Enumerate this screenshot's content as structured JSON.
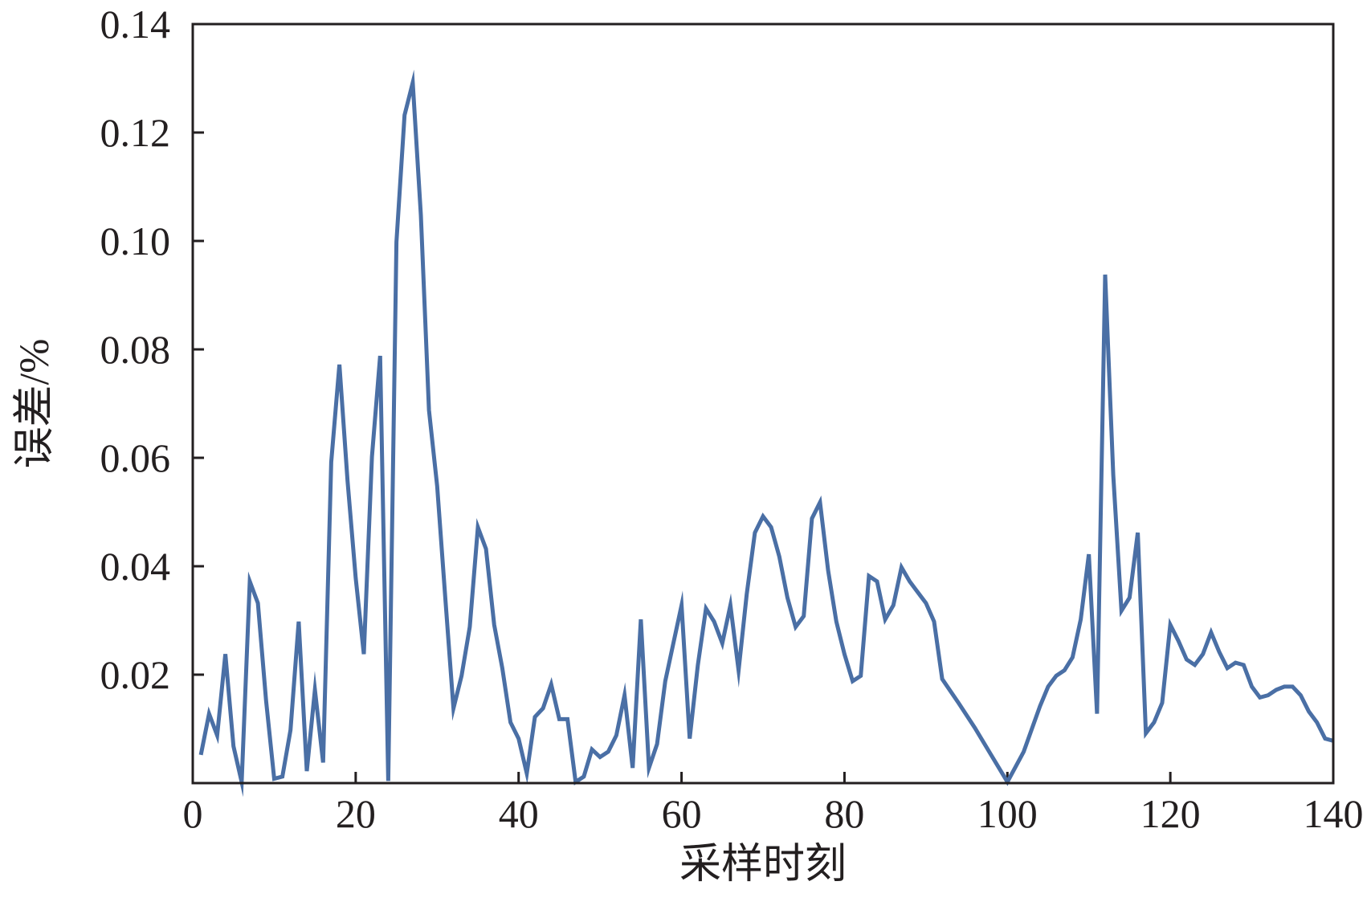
{
  "colors": {
    "line": "#4a6fa5",
    "axis": "#231f20",
    "background": "#ffffff"
  },
  "chart_data": {
    "type": "line",
    "title": "",
    "xlabel": "采样时刻",
    "ylabel": "误差/%",
    "xlim": [
      0,
      140
    ],
    "ylim": [
      0,
      0.14
    ],
    "grid": false,
    "legend": "none",
    "x_ticks": [
      0,
      20,
      40,
      60,
      80,
      100,
      120,
      140
    ],
    "x_tick_labels": [
      "0",
      "20",
      "40",
      "60",
      "80",
      "100",
      "120",
      "140"
    ],
    "y_ticks": [
      0.02,
      0.04,
      0.06,
      0.08,
      0.1,
      0.12,
      0.14
    ],
    "y_tick_labels": [
      "0.02",
      "0.04",
      "0.06",
      "0.08",
      "0.10",
      "0.12",
      "0.14"
    ],
    "series": [
      {
        "values": [
          [
            1,
            0.0052
          ],
          [
            2,
            0.0128
          ],
          [
            3,
            0.0088
          ],
          [
            4,
            0.0238
          ],
          [
            5,
            0.0068
          ],
          [
            6,
            0.0002
          ],
          [
            7,
            0.0372
          ],
          [
            8,
            0.0332
          ],
          [
            9,
            0.0152
          ],
          [
            10,
            0.0008
          ],
          [
            11,
            0.0012
          ],
          [
            12,
            0.0098
          ],
          [
            13,
            0.0298
          ],
          [
            14,
            0.0022
          ],
          [
            15,
            0.0172
          ],
          [
            16,
            0.0038
          ],
          [
            17,
            0.0592
          ],
          [
            18,
            0.0772
          ],
          [
            19,
            0.0558
          ],
          [
            20,
            0.0378
          ],
          [
            21,
            0.0238
          ],
          [
            22,
            0.0602
          ],
          [
            23,
            0.0788
          ],
          [
            24,
            0.0004
          ],
          [
            25,
            0.0998
          ],
          [
            26,
            0.1232
          ],
          [
            27,
            0.1292
          ],
          [
            28,
            0.1048
          ],
          [
            29,
            0.0688
          ],
          [
            30,
            0.0548
          ],
          [
            31,
            0.0342
          ],
          [
            32,
            0.0138
          ],
          [
            33,
            0.0198
          ],
          [
            34,
            0.0288
          ],
          [
            35,
            0.0472
          ],
          [
            36,
            0.0432
          ],
          [
            37,
            0.0292
          ],
          [
            38,
            0.0212
          ],
          [
            39,
            0.0112
          ],
          [
            40,
            0.0082
          ],
          [
            41,
            0.0018
          ],
          [
            42,
            0.0122
          ],
          [
            43,
            0.0138
          ],
          [
            44,
            0.0182
          ],
          [
            45,
            0.0118
          ],
          [
            46,
            0.0118
          ],
          [
            47,
            0.0002
          ],
          [
            48,
            0.0012
          ],
          [
            49,
            0.0062
          ],
          [
            50,
            0.0048
          ],
          [
            51,
            0.0058
          ],
          [
            52,
            0.0088
          ],
          [
            53,
            0.0162
          ],
          [
            54,
            0.0028
          ],
          [
            55,
            0.0302
          ],
          [
            56,
            0.0028
          ],
          [
            57,
            0.0072
          ],
          [
            58,
            0.0188
          ],
          [
            59,
            0.0258
          ],
          [
            60,
            0.0328
          ],
          [
            61,
            0.0082
          ],
          [
            62,
            0.0218
          ],
          [
            63,
            0.0322
          ],
          [
            64,
            0.0298
          ],
          [
            65,
            0.0258
          ],
          [
            66,
            0.0328
          ],
          [
            67,
            0.0208
          ],
          [
            68,
            0.0348
          ],
          [
            69,
            0.0462
          ],
          [
            70,
            0.0492
          ],
          [
            71,
            0.0472
          ],
          [
            72,
            0.0418
          ],
          [
            73,
            0.0342
          ],
          [
            74,
            0.0288
          ],
          [
            75,
            0.0308
          ],
          [
            76,
            0.0488
          ],
          [
            77,
            0.0518
          ],
          [
            78,
            0.0392
          ],
          [
            79,
            0.0298
          ],
          [
            80,
            0.0238
          ],
          [
            81,
            0.0188
          ],
          [
            82,
            0.0198
          ],
          [
            83,
            0.0382
          ],
          [
            84,
            0.0372
          ],
          [
            85,
            0.0302
          ],
          [
            86,
            0.0328
          ],
          [
            87,
            0.0398
          ],
          [
            88,
            0.0372
          ],
          [
            89,
            0.0352
          ],
          [
            90,
            0.0332
          ],
          [
            91,
            0.0298
          ],
          [
            92,
            0.0192
          ],
          [
            94,
            0.0148
          ],
          [
            96,
            0.0102
          ],
          [
            98,
            0.0052
          ],
          [
            100,
            0.0002
          ],
          [
            102,
            0.0058
          ],
          [
            104,
            0.0142
          ],
          [
            105,
            0.0178
          ],
          [
            106,
            0.0198
          ],
          [
            107,
            0.0208
          ],
          [
            108,
            0.0232
          ],
          [
            109,
            0.0302
          ],
          [
            110,
            0.0422
          ],
          [
            111,
            0.0128
          ],
          [
            112,
            0.0938
          ],
          [
            113,
            0.0568
          ],
          [
            114,
            0.0318
          ],
          [
            115,
            0.0342
          ],
          [
            116,
            0.0462
          ],
          [
            117,
            0.0092
          ],
          [
            118,
            0.0112
          ],
          [
            119,
            0.0148
          ],
          [
            120,
            0.0292
          ],
          [
            121,
            0.0262
          ],
          [
            122,
            0.0228
          ],
          [
            123,
            0.0218
          ],
          [
            124,
            0.0238
          ],
          [
            125,
            0.0278
          ],
          [
            126,
            0.0242
          ],
          [
            127,
            0.0212
          ],
          [
            128,
            0.0222
          ],
          [
            129,
            0.0218
          ],
          [
            130,
            0.0178
          ],
          [
            131,
            0.0158
          ],
          [
            132,
            0.0162
          ],
          [
            133,
            0.0172
          ],
          [
            134,
            0.0178
          ],
          [
            135,
            0.0178
          ],
          [
            136,
            0.0162
          ],
          [
            137,
            0.0132
          ],
          [
            138,
            0.0112
          ],
          [
            139,
            0.0082
          ],
          [
            140,
            0.0078
          ]
        ]
      }
    ]
  }
}
